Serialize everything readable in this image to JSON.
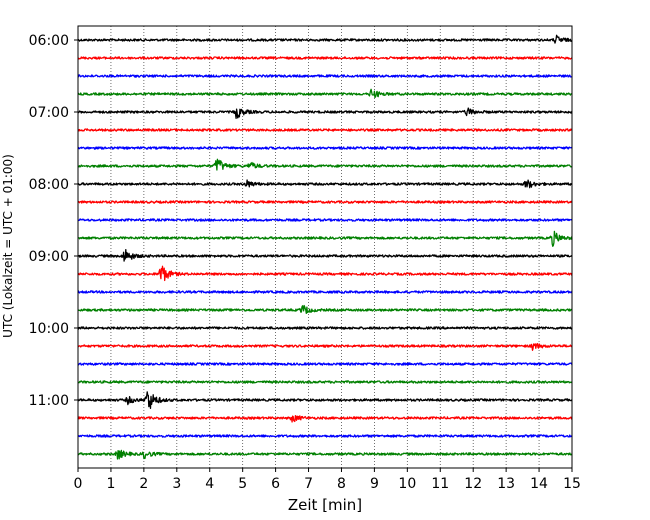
{
  "chart_data": {
    "type": "line",
    "subtype": "helicorder",
    "xlabel": "Zeit  [min]",
    "ylabel": "UTC (Lokalzeit = UTC + 01:00)",
    "xlim": [
      0,
      15
    ],
    "x_ticks": [
      "0",
      "1",
      "2",
      "3",
      "4",
      "5",
      "6",
      "7",
      "8",
      "9",
      "10",
      "11",
      "12",
      "13",
      "14",
      "15"
    ],
    "y_tick_labels": [
      "06:00",
      "07:00",
      "08:00",
      "09:00",
      "10:00",
      "11:00"
    ],
    "grid": "vertical dotted at each minute",
    "trace_interval_min": 15,
    "trace_colors": [
      "#000000",
      "#ff0000",
      "#0000ff",
      "#008000"
    ],
    "traces": [
      {
        "start": "06:00",
        "color": "#000000",
        "events": [
          {
            "t": 14.5,
            "amp": 0.35
          }
        ]
      },
      {
        "start": "06:15",
        "color": "#ff0000",
        "events": []
      },
      {
        "start": "06:30",
        "color": "#0000ff",
        "events": []
      },
      {
        "start": "06:45",
        "color": "#008000",
        "events": [
          {
            "t": 8.9,
            "amp": 0.4
          }
        ]
      },
      {
        "start": "07:00",
        "color": "#000000",
        "events": [
          {
            "t": 4.8,
            "amp": 0.5
          },
          {
            "t": 11.8,
            "amp": 0.3
          }
        ]
      },
      {
        "start": "07:15",
        "color": "#ff0000",
        "events": []
      },
      {
        "start": "07:30",
        "color": "#0000ff",
        "events": []
      },
      {
        "start": "07:45",
        "color": "#008000",
        "events": [
          {
            "t": 4.2,
            "amp": 0.7
          },
          {
            "t": 5.2,
            "amp": 0.3
          }
        ]
      },
      {
        "start": "08:00",
        "color": "#000000",
        "events": [
          {
            "t": 5.1,
            "amp": 0.3
          },
          {
            "t": 13.6,
            "amp": 0.4
          }
        ]
      },
      {
        "start": "08:15",
        "color": "#ff0000",
        "events": []
      },
      {
        "start": "08:30",
        "color": "#0000ff",
        "events": []
      },
      {
        "start": "08:45",
        "color": "#008000",
        "events": [
          {
            "t": 14.4,
            "amp": 0.6
          }
        ]
      },
      {
        "start": "09:00",
        "color": "#000000",
        "events": [
          {
            "t": 1.4,
            "amp": 0.6
          }
        ]
      },
      {
        "start": "09:15",
        "color": "#ff0000",
        "events": [
          {
            "t": 2.5,
            "amp": 0.9
          }
        ]
      },
      {
        "start": "09:30",
        "color": "#0000ff",
        "events": []
      },
      {
        "start": "09:45",
        "color": "#008000",
        "events": [
          {
            "t": 6.8,
            "amp": 0.4
          }
        ]
      },
      {
        "start": "10:00",
        "color": "#000000",
        "events": []
      },
      {
        "start": "10:15",
        "color": "#ff0000",
        "events": [
          {
            "t": 13.8,
            "amp": 0.3
          }
        ]
      },
      {
        "start": "10:30",
        "color": "#0000ff",
        "events": []
      },
      {
        "start": "10:45",
        "color": "#008000",
        "events": []
      },
      {
        "start": "11:00",
        "color": "#000000",
        "events": [
          {
            "t": 2.1,
            "amp": 1.0
          },
          {
            "t": 1.5,
            "amp": 0.3
          }
        ]
      },
      {
        "start": "11:15",
        "color": "#ff0000",
        "events": [
          {
            "t": 6.5,
            "amp": 0.3
          }
        ]
      },
      {
        "start": "11:30",
        "color": "#0000ff",
        "events": []
      },
      {
        "start": "11:45",
        "color": "#008000",
        "events": [
          {
            "t": 1.2,
            "amp": 0.4
          },
          {
            "t": 2.0,
            "amp": 0.3
          }
        ]
      }
    ]
  }
}
